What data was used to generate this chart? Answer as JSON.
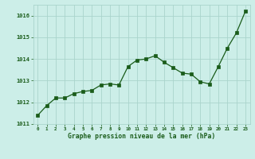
{
  "x": [
    0,
    1,
    2,
    3,
    4,
    5,
    6,
    7,
    8,
    9,
    10,
    11,
    12,
    13,
    14,
    15,
    16,
    17,
    18,
    19,
    20,
    21,
    22,
    23
  ],
  "y": [
    1011.4,
    1011.85,
    1012.2,
    1012.2,
    1012.4,
    1012.5,
    1012.55,
    1012.8,
    1012.85,
    1012.8,
    1013.65,
    1013.95,
    1014.0,
    1014.15,
    1013.85,
    1013.6,
    1013.35,
    1013.3,
    1012.95,
    1012.85,
    1013.65,
    1014.5,
    1015.2,
    1016.2
  ],
  "ylim": [
    1011,
    1016.5
  ],
  "xlim": [
    -0.5,
    23.5
  ],
  "yticks": [
    1011,
    1012,
    1013,
    1014,
    1015,
    1016
  ],
  "xticks": [
    0,
    1,
    2,
    3,
    4,
    5,
    6,
    7,
    8,
    9,
    10,
    11,
    12,
    13,
    14,
    15,
    16,
    17,
    18,
    19,
    20,
    21,
    22,
    23
  ],
  "xlabel": "Graphe pression niveau de la mer (hPa)",
  "line_color": "#1a5c1a",
  "bg_color": "#cceee8",
  "grid_color": "#aad4cc",
  "label_color": "#1a5c1a"
}
